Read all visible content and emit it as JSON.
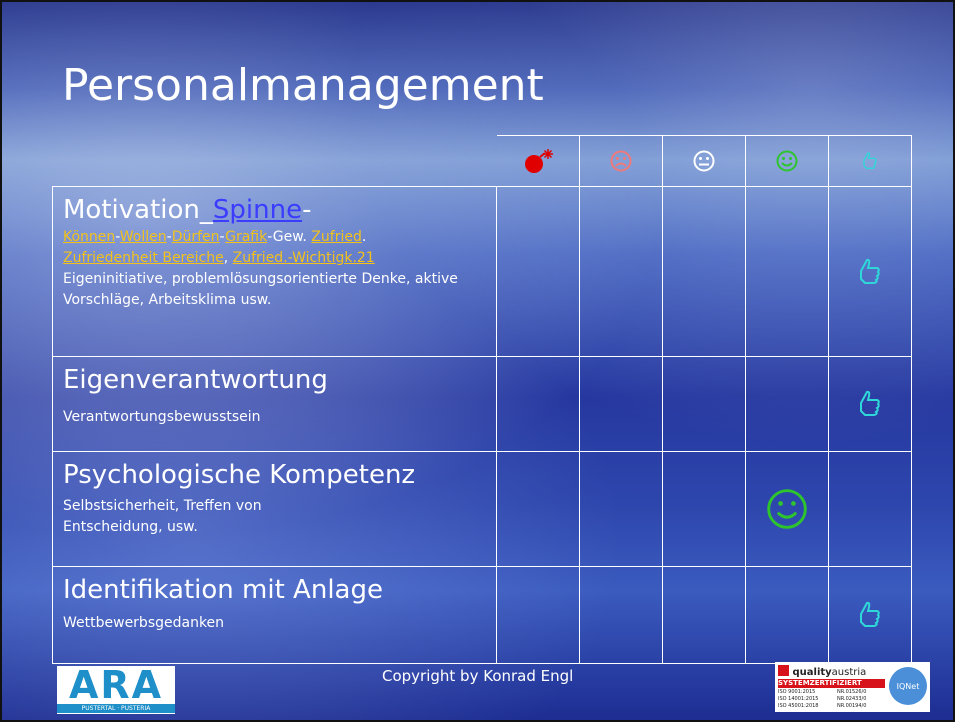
{
  "title": "Personalmanagement",
  "table": {
    "rows": [
      {
        "heading": "Motivation_",
        "heading_link": "Spinne",
        "heading_end": "-",
        "links": [
          "Können",
          "-",
          "Wollen",
          "-",
          "Dürfen",
          "-",
          "Grafik",
          "-Gew. ",
          "Zufried",
          ".",
          "Zufriedenheit Bereiche",
          ", ",
          "Zufried.-Wichtigk.21"
        ],
        "description": "Eigeninitiative, problemlösungsorientierte Denke, aktive Vorschläge, Arbeitsklima usw."
      },
      {
        "heading": "Eigenverantwortung",
        "description": "Verantwortungsbewusstsein"
      },
      {
        "heading": "Psychologische Kompetenz",
        "description": "Selbstsicherheit, Treffen von Entscheidung, usw."
      },
      {
        "heading": "Identifikation mit Anlage",
        "description": "Wettbewerbsgedanken"
      }
    ]
  },
  "footer": {
    "copyright": "Copyright by Konrad Engl",
    "logo_left": {
      "name": "ARA",
      "tagline": "PUSTERTAL · PUSTERIA"
    },
    "logo_right": {
      "brand_a": "quality",
      "brand_b": "austria",
      "badge": "SYSTEMZERTIFIZIERT",
      "network": "IQNet",
      "norms": [
        "ISO 9001:2015",
        "ISO 14001:2015",
        "ISO 45001:2018"
      ],
      "numbers": [
        "NR.01526/0",
        "NR.02433/0",
        "NR.00194/0"
      ]
    }
  }
}
